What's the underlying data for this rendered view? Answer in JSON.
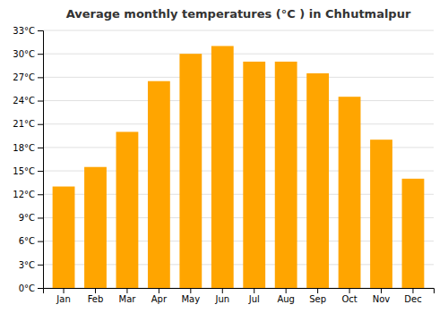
{
  "chart_data": {
    "type": "bar",
    "title": "Average monthly temperatures (°C ) in Chhutmalpur",
    "categories": [
      "Jan",
      "Feb",
      "Mar",
      "Apr",
      "May",
      "Jun",
      "Jul",
      "Aug",
      "Sep",
      "Oct",
      "Nov",
      "Dec"
    ],
    "values": [
      13,
      15.5,
      20,
      26.5,
      30,
      31,
      29,
      29,
      27.5,
      24.5,
      19,
      14
    ],
    "color": "#FFA500",
    "ylim": [
      0,
      33
    ],
    "yticks": [
      {
        "value": 0,
        "label": "0°C"
      },
      {
        "value": 3,
        "label": "3°C"
      },
      {
        "value": 6,
        "label": "6°C"
      },
      {
        "value": 9,
        "label": "9°C"
      },
      {
        "value": 12,
        "label": "12°C"
      },
      {
        "value": 15,
        "label": "15°C"
      },
      {
        "value": 18,
        "label": "18°C"
      },
      {
        "value": 21,
        "label": "21°C"
      },
      {
        "value": 24,
        "label": "24°C"
      },
      {
        "value": 27,
        "label": "27°C"
      },
      {
        "value": 30,
        "label": "30°C"
      },
      {
        "value": 33,
        "label": "33°C"
      }
    ],
    "grid": true
  }
}
